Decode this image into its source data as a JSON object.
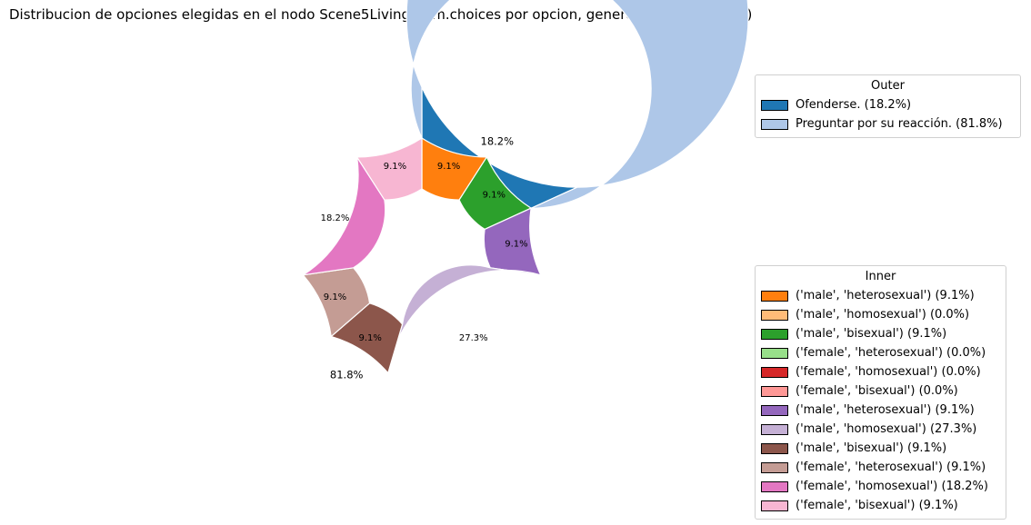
{
  "chart_data": {
    "type": "pie",
    "title": "Distribucion de opciones elegidas en el nodo Scene5Livingroom.choices por opcion, genero y sexualidad (%)",
    "outer": {
      "legend_title": "Outer",
      "legend_placement": "upper-right",
      "slices": [
        {
          "label": "Ofenderse. (18.2%)",
          "value": 18.2,
          "pct_label": "18.2%",
          "color": "#1f77b4"
        },
        {
          "label": "Preguntar por su reacción. (81.8%)",
          "value": 81.8,
          "pct_label": "81.8%",
          "color": "#aec7e8"
        }
      ]
    },
    "inner": {
      "legend_title": "Inner",
      "legend_placement": "lower-right",
      "slices": [
        {
          "label": "('male', 'heterosexual') (9.1%)",
          "value": 9.1,
          "pct_label": "9.1%",
          "color": "#ff7f0e"
        },
        {
          "label": "('male', 'homosexual') (0.0%)",
          "value": 0.0,
          "pct_label": "",
          "color": "#ffbb78"
        },
        {
          "label": "('male', 'bisexual') (9.1%)",
          "value": 9.1,
          "pct_label": "9.1%",
          "color": "#2ca02c"
        },
        {
          "label": "('female', 'heterosexual') (0.0%)",
          "value": 0.0,
          "pct_label": "",
          "color": "#98df8a"
        },
        {
          "label": "('female', 'homosexual') (0.0%)",
          "value": 0.0,
          "pct_label": "",
          "color": "#d62728"
        },
        {
          "label": "('female', 'bisexual') (0.0%)",
          "value": 0.0,
          "pct_label": "",
          "color": "#ff9896"
        },
        {
          "label": "('male', 'heterosexual') (9.1%)",
          "value": 9.1,
          "pct_label": "9.1%",
          "color": "#9467bd"
        },
        {
          "label": "('male', 'homosexual') (27.3%)",
          "value": 27.3,
          "pct_label": "27.3%",
          "color": "#c5b0d5"
        },
        {
          "label": "('male', 'bisexual') (9.1%)",
          "value": 9.1,
          "pct_label": "9.1%",
          "color": "#8c564b"
        },
        {
          "label": "('female', 'heterosexual') (9.1%)",
          "value": 9.1,
          "pct_label": "9.1%",
          "color": "#c49c94"
        },
        {
          "label": "('female', 'homosexual') (18.2%)",
          "value": 18.2,
          "pct_label": "18.2%",
          "color": "#e377c2"
        },
        {
          "label": "('female', 'bisexual') (9.1%)",
          "value": 9.1,
          "pct_label": "9.1%",
          "color": "#f7b6d2"
        }
      ]
    }
  }
}
